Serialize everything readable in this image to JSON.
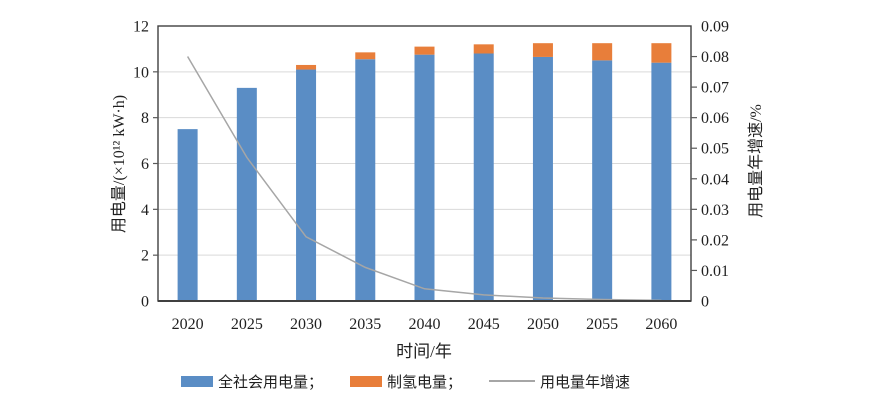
{
  "figure_title": "",
  "chart_data": {
    "type": "bar",
    "subtype": "stacked-bars-with-line",
    "categories": [
      "2020",
      "2025",
      "2030",
      "2035",
      "2040",
      "2045",
      "2050",
      "2055",
      "2060"
    ],
    "series": [
      {
        "key": "total-electricity",
        "name": "全社会用电量",
        "kind": "bar",
        "axis": "left",
        "color": "#5a8dc5",
        "values": [
          7.5,
          9.3,
          10.1,
          10.55,
          10.75,
          10.8,
          10.65,
          10.5,
          10.4
        ]
      },
      {
        "key": "hydrogen-electricity",
        "name": "制氢电量",
        "kind": "bar",
        "axis": "left",
        "color": "#e87e3a",
        "values": [
          0,
          0,
          0.2,
          0.3,
          0.35,
          0.4,
          0.6,
          0.75,
          0.85
        ]
      },
      {
        "key": "growth-rate",
        "name": "用电量年增速",
        "kind": "line",
        "axis": "right",
        "color": "#a6a6a6",
        "values": [
          0.08,
          0.047,
          0.021,
          0.011,
          0.004,
          0.002,
          0.001,
          0.0005,
          0.0002
        ]
      }
    ],
    "left_axis": {
      "title": "用电量/(×10¹² kW·h)",
      "min": 0,
      "max": 12,
      "ticks": [
        0,
        2,
        4,
        6,
        8,
        10,
        12
      ],
      "tick_labels": [
        "0",
        "2",
        "4",
        "6",
        "8",
        "10",
        "12"
      ]
    },
    "right_axis": {
      "title": "用电量年增速/%",
      "min": 0,
      "max": 0.09,
      "ticks": [
        0,
        0.01,
        0.02,
        0.03,
        0.04,
        0.05,
        0.06,
        0.07,
        0.08,
        0.09
      ],
      "tick_labels": [
        "0",
        "0.01",
        "0.02",
        "0.03",
        "0.04",
        "0.05",
        "0.06",
        "0.07",
        "0.08",
        "0.09"
      ]
    },
    "xlabel": "时间/年",
    "grid": true,
    "gridline_values": [
      2,
      4,
      6,
      8,
      10
    ],
    "legend_position": "bottom"
  },
  "legend": {
    "items": [
      {
        "label": "全社会用电量；",
        "swatch": "rect",
        "color": "#5a8dc5"
      },
      {
        "label": "制氢电量；",
        "swatch": "rect",
        "color": "#e87e3a"
      },
      {
        "label": "用电量年增速",
        "swatch": "line",
        "color": "#a6a6a6"
      }
    ]
  },
  "colors": {
    "background": "#ffffff",
    "gridline": "#d9d9d9",
    "frame": "#404040",
    "tick": "#595959",
    "text": "#1f1f1f",
    "bar_blue": "#5a8dc5",
    "bar_orange": "#e87e3a",
    "line_gray": "#a6a6a6"
  }
}
